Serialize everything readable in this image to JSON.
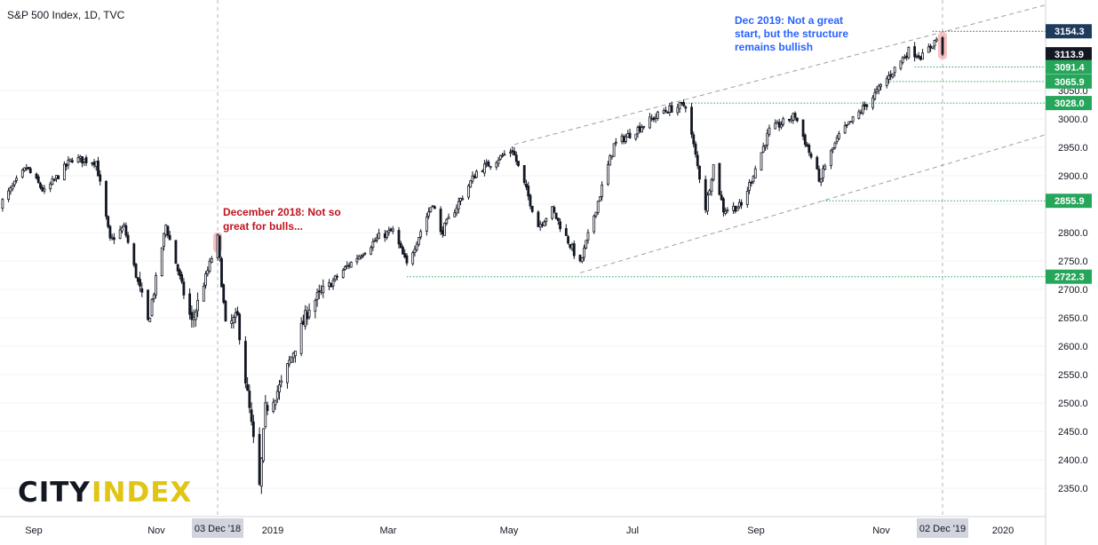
{
  "header": {
    "title": "S&P 500 Index, 1D, TVC"
  },
  "logo": {
    "city": "CITY",
    "index": "INDEX"
  },
  "annotations": {
    "dec2018": [
      "December 2018: Not so",
      "great for bulls..."
    ],
    "dec2019": [
      "Dec 2019: Not a great",
      "start, but the structure",
      "remains bullish"
    ]
  },
  "date_badges": {
    "left": "03 Dec '18",
    "right": "02 Dec '19"
  },
  "colors": {
    "candle": "#131722",
    "support_line": "#26a65b",
    "level_badge": "#26a65b",
    "last_price_badge": "#131722",
    "high_badge": "#1e3a5c",
    "anno_red": "#c0131f",
    "anno_blue": "#2962ff",
    "highlight": "#f7b6b6",
    "channel": "#9e9e9e"
  },
  "chart_data": {
    "type": "candlestick",
    "title": "S&P 500 Index, 1D, TVC",
    "x_labels": [
      "Sep",
      "Nov",
      "2019",
      "Mar",
      "May",
      "Jul",
      "Sep",
      "Nov",
      "2020"
    ],
    "ylim": [
      2310,
      3175
    ],
    "y_ticks": [
      2350,
      2400,
      2450,
      2500,
      2550,
      2600,
      2650,
      2700,
      2750,
      2800,
      2850,
      2900,
      2950,
      3000,
      3050
    ],
    "levels": [
      {
        "value": 3154.3,
        "label": "3154.3",
        "style": "dotted-blue",
        "kind": "high"
      },
      {
        "value": 3113.9,
        "label": "3113.9",
        "kind": "last"
      },
      {
        "value": 3091.4,
        "label": "3091.4",
        "style": "dotted-green"
      },
      {
        "value": 3065.9,
        "label": "3065.9",
        "style": "dotted-green"
      },
      {
        "value": 3028.0,
        "label": "3028.0",
        "style": "dotted-green"
      },
      {
        "value": 2855.9,
        "label": "2855.9",
        "style": "dotted-green"
      },
      {
        "value": 2722.3,
        "label": "2722.3",
        "style": "dotted-green"
      }
    ],
    "channel": {
      "upper": [
        [
          "2019-05-01",
          2955
        ],
        [
          "2019-12-02",
          3153
        ]
      ],
      "lower": [
        [
          "2019-06-03",
          2729
        ],
        [
          "2019-10-03",
          2856
        ]
      ]
    },
    "anchors": [
      [
        "2018-08-16",
        2850
      ],
      [
        "2018-08-29",
        2914
      ],
      [
        "2018-09-07",
        2871
      ],
      [
        "2018-09-21",
        2930
      ],
      [
        "2018-10-03",
        2925
      ],
      [
        "2018-10-10",
        2785
      ],
      [
        "2018-10-17",
        2810
      ],
      [
        "2018-10-29",
        2641
      ],
      [
        "2018-11-07",
        2813
      ],
      [
        "2018-11-20",
        2641
      ],
      [
        "2018-12-03",
        2790
      ],
      [
        "2018-12-07",
        2633
      ],
      [
        "2018-12-13",
        2650
      ],
      [
        "2018-12-24",
        2351
      ],
      [
        "2018-12-27",
        2489
      ],
      [
        "2019-01-04",
        2532
      ],
      [
        "2019-01-18",
        2670
      ],
      [
        "2019-02-05",
        2737
      ],
      [
        "2019-02-22",
        2792
      ],
      [
        "2019-03-01",
        2803
      ],
      [
        "2019-03-08",
        2743
      ],
      [
        "2019-03-21",
        2854
      ],
      [
        "2019-03-25",
        2798
      ],
      [
        "2019-04-12",
        2907
      ],
      [
        "2019-04-30",
        2946
      ],
      [
        "2019-05-13",
        2812
      ],
      [
        "2019-05-20",
        2840
      ],
      [
        "2019-06-03",
        2744
      ],
      [
        "2019-06-20",
        2954
      ],
      [
        "2019-07-15",
        3014
      ],
      [
        "2019-07-26",
        3025
      ],
      [
        "2019-08-05",
        2844
      ],
      [
        "2019-08-09",
        2918
      ],
      [
        "2019-08-14",
        2840
      ],
      [
        "2019-08-23",
        2847
      ],
      [
        "2019-09-06",
        2979
      ],
      [
        "2019-09-19",
        3006
      ],
      [
        "2019-10-02",
        2887
      ],
      [
        "2019-10-03",
        2911
      ],
      [
        "2019-10-11",
        2970
      ],
      [
        "2019-10-28",
        3039
      ],
      [
        "2019-11-15",
        3120
      ],
      [
        "2019-11-22",
        3110
      ],
      [
        "2019-11-29",
        3141
      ],
      [
        "2019-12-02",
        3113.9
      ]
    ]
  }
}
